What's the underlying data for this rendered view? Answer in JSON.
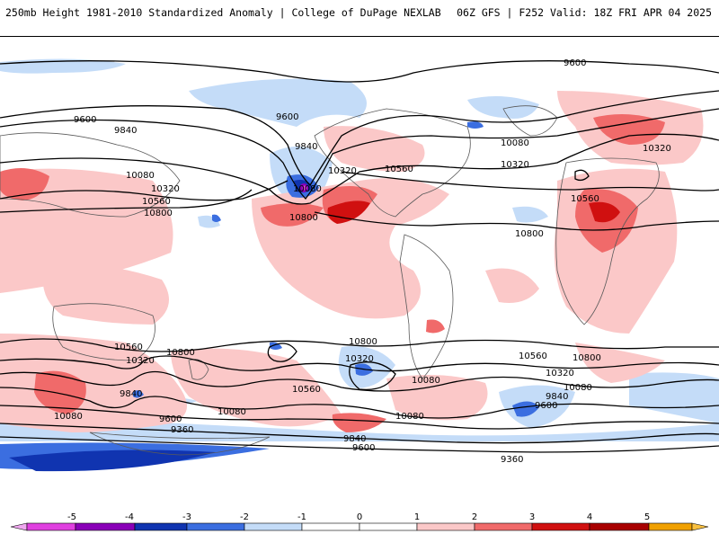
{
  "header": {
    "title": "250mb Height 1981-2010 Standardized Anomaly | College of DuPage NEXLAB",
    "run_info": "06Z GFS | F252 Valid: 18Z FRI APR 04 2025"
  },
  "colors": {
    "neg5": "#e040e0",
    "neg4": "#8a00b8",
    "neg3": "#1034b0",
    "neg2": "#3b6ee0",
    "neg1": "#c4dcf8",
    "pos1": "#fbc8c8",
    "pos2": "#f06a6a",
    "pos3": "#d01010",
    "pos4": "#a80000",
    "pos5": "#f0a000",
    "coast": "#5a5a5a",
    "contour": "#000000"
  },
  "contour_labels": [
    {
      "text": "9600"
    },
    {
      "text": "9600"
    },
    {
      "text": "9600"
    },
    {
      "text": "9840"
    },
    {
      "text": "9840"
    },
    {
      "text": "10080"
    },
    {
      "text": "10320"
    },
    {
      "text": "10320"
    },
    {
      "text": "10560"
    },
    {
      "text": "10080"
    },
    {
      "text": "10560"
    },
    {
      "text": "10320"
    },
    {
      "text": "10800"
    },
    {
      "text": "10800"
    },
    {
      "text": "10800"
    },
    {
      "text": "10080"
    },
    {
      "text": "10320"
    },
    {
      "text": "10560"
    },
    {
      "text": "10560"
    },
    {
      "text": "10800"
    },
    {
      "text": "10560"
    },
    {
      "text": "10320"
    },
    {
      "text": "10080"
    },
    {
      "text": "9840"
    },
    {
      "text": "9600"
    },
    {
      "text": "9360"
    },
    {
      "text": "9600"
    },
    {
      "text": "9360"
    },
    {
      "text": "10800"
    },
    {
      "text": "10560"
    },
    {
      "text": "10320"
    },
    {
      "text": "10080"
    },
    {
      "text": "9840"
    },
    {
      "text": "10080"
    },
    {
      "text": "9600"
    },
    {
      "text": "10320"
    },
    {
      "text": "10800"
    },
    {
      "text": "10080"
    },
    {
      "text": "9840"
    },
    {
      "text": "10080"
    }
  ],
  "colorbar": {
    "ticks": [
      "-5",
      "-4",
      "-3",
      "-2",
      "-1",
      "0",
      "1",
      "2",
      "3",
      "4",
      "5"
    ]
  }
}
